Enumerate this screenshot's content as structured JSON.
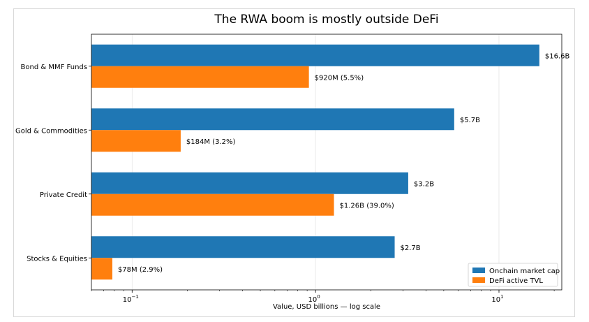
{
  "chart_data": {
    "type": "bar",
    "orientation": "horizontal",
    "title": "The RWA boom is mostly outside DeFi",
    "xlabel": "Value, USD billions — log scale",
    "ylabel": "",
    "xscale": "log",
    "xlim": [
      0.06,
      22
    ],
    "xticks": [
      {
        "value": 0.1,
        "base": "10",
        "exp": "−1"
      },
      {
        "value": 1,
        "base": "10",
        "exp": "0"
      },
      {
        "value": 10,
        "base": "10",
        "exp": "1"
      }
    ],
    "categories": [
      "Bond & MMF Funds",
      "Gold & Commodities",
      "Private Credit",
      "Stocks & Equities"
    ],
    "series": [
      {
        "name": "Onchain market cap",
        "color": "#1f77b4",
        "values": [
          16.6,
          5.7,
          3.2,
          2.7
        ],
        "labels": [
          "$16.6B",
          "$5.7B",
          "$3.2B",
          "$2.7B"
        ]
      },
      {
        "name": "DeFi active TVL",
        "color": "#ff7f0e",
        "values": [
          0.92,
          0.184,
          1.26,
          0.078
        ],
        "labels": [
          "$920M (5.5%)",
          "$184M (3.2%)",
          "$1.26B (39.0%)",
          "$78M (2.9%)"
        ]
      }
    ],
    "grid": "x",
    "legend_position": "lower-right"
  }
}
